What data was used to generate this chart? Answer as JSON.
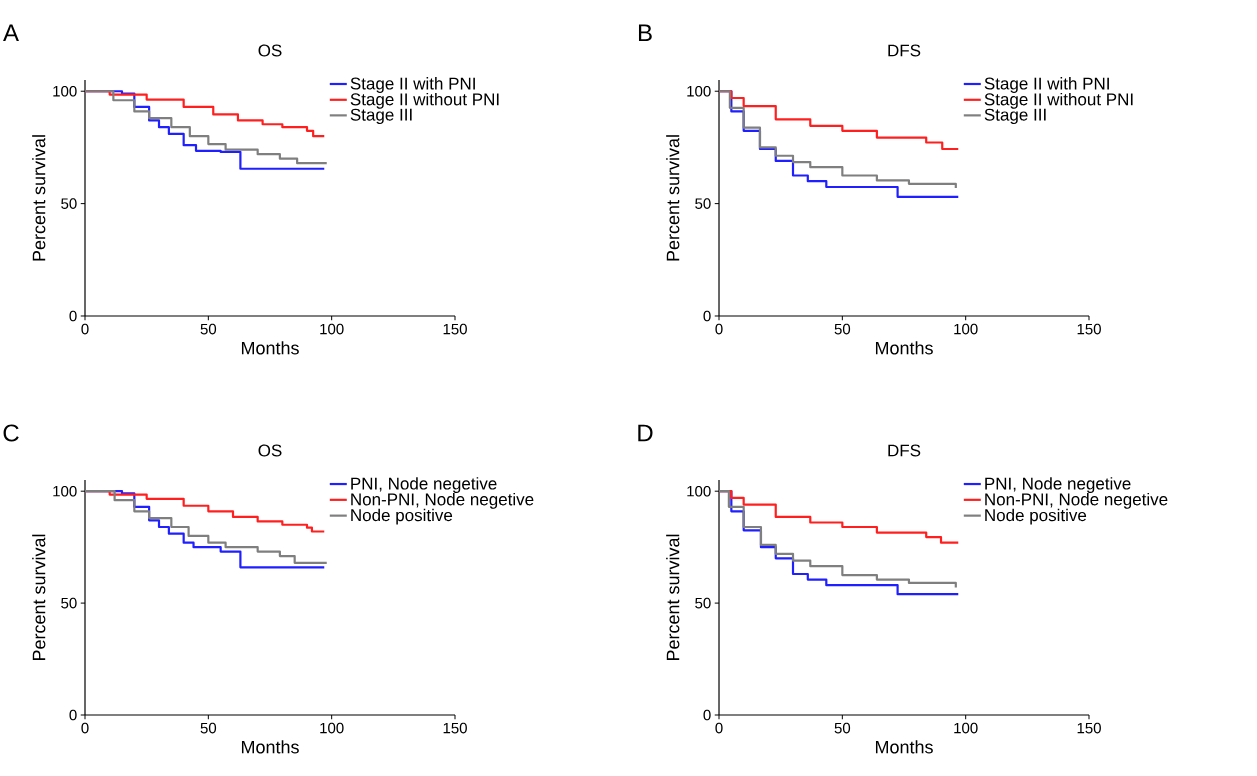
{
  "chart_data": [
    {
      "type": "step",
      "title": "OS",
      "xlabel": "Months",
      "ylabel": "Percent survival",
      "annotations": [
        "A"
      ],
      "xlim": [
        0,
        150
      ],
      "xticks": [
        0,
        50,
        100,
        150
      ],
      "ylim": [
        0,
        105
      ],
      "yticks": [
        0,
        50,
        100
      ],
      "legend": "top right",
      "series": [
        {
          "name": "Stage II with PNI",
          "color": "#1f1fff",
          "x": [
            0,
            15,
            20,
            26,
            30,
            34,
            40,
            45,
            55,
            63,
            97
          ],
          "values": [
            100,
            99,
            93,
            87,
            84,
            81,
            76,
            73.5,
            73,
            65.5,
            65.5
          ]
        },
        {
          "name": "Stage II without PNI",
          "color": "#ff1f1f",
          "x": [
            0,
            10,
            25,
            40,
            52,
            62,
            72,
            80,
            90,
            92.5,
            97
          ],
          "values": [
            100,
            98.5,
            96.3,
            93,
            89.7,
            87,
            85.3,
            84,
            82.4,
            80,
            80
          ]
        },
        {
          "name": "Stage III",
          "color": "#7f7f7f",
          "x": [
            0,
            11.5,
            20,
            26,
            35,
            42.5,
            50,
            57,
            70,
            79,
            86,
            98
          ],
          "values": [
            100,
            96,
            91,
            88,
            84,
            80,
            76.5,
            74,
            72,
            70,
            68,
            68
          ]
        }
      ]
    },
    {
      "type": "step",
      "title": "DFS",
      "xlabel": "Months",
      "ylabel": "Percent survival",
      "annotations": [
        "B"
      ],
      "xlim": [
        0,
        150
      ],
      "xticks": [
        0,
        50,
        100,
        150
      ],
      "ylim": [
        0,
        105
      ],
      "yticks": [
        0,
        50,
        100
      ],
      "legend": "top right",
      "series": [
        {
          "name": "Stage II with PNI",
          "color": "#1f1fff",
          "x": [
            0,
            5,
            10,
            16.6,
            23,
            30,
            36,
            43.5,
            72.4,
            97
          ],
          "values": [
            100,
            91,
            82.4,
            74.3,
            69,
            62.5,
            60,
            57.4,
            53,
            53
          ]
        },
        {
          "name": "Stage II without PNI",
          "color": "#ff1f1f",
          "x": [
            0,
            5,
            10,
            23,
            37,
            50,
            64,
            84,
            90.5,
            97
          ],
          "values": [
            100,
            97,
            93.4,
            87.5,
            84.6,
            82.4,
            79.4,
            77.2,
            74.3,
            74.3
          ]
        },
        {
          "name": "Stage III",
          "color": "#7f7f7f",
          "x": [
            0,
            4.4,
            10,
            16.6,
            23,
            30,
            37,
            50,
            64,
            77,
            96
          ],
          "values": [
            100,
            92.6,
            83.8,
            75,
            71.3,
            68.5,
            66.2,
            62.5,
            60.3,
            58.8,
            57
          ]
        }
      ]
    },
    {
      "type": "step",
      "title": "OS",
      "xlabel": "Months",
      "ylabel": "Percent survival",
      "annotations": [
        "C"
      ],
      "xlim": [
        0,
        150
      ],
      "xticks": [
        0,
        50,
        100,
        150
      ],
      "ylim": [
        0,
        105
      ],
      "yticks": [
        0,
        50,
        100
      ],
      "legend": "top right",
      "series": [
        {
          "name": "PNI, Node negetive",
          "color": "#1f1fff",
          "x": [
            0,
            15,
            20,
            26,
            30,
            34,
            40,
            44,
            55,
            63,
            97
          ],
          "values": [
            100,
            99,
            93,
            87,
            84,
            81,
            77,
            75,
            73,
            66,
            66
          ]
        },
        {
          "name": "Non-PNI, Node negetive",
          "color": "#ff1f1f",
          "x": [
            0,
            10,
            25,
            40,
            50,
            60,
            70,
            80,
            90,
            92,
            97
          ],
          "values": [
            100,
            98.5,
            96.6,
            93.5,
            91,
            88.5,
            86.5,
            85,
            83.7,
            82,
            82
          ]
        },
        {
          "name": "Node positive",
          "color": "#7f7f7f",
          "x": [
            0,
            12,
            20,
            26,
            35,
            42,
            50,
            57,
            70,
            79,
            85,
            98
          ],
          "values": [
            100,
            96,
            91,
            88,
            84,
            80,
            77,
            75,
            73,
            71,
            68,
            68
          ]
        }
      ]
    },
    {
      "type": "step",
      "title": "DFS",
      "xlabel": "Months",
      "ylabel": "Percent survival",
      "annotations": [
        "D"
      ],
      "xlim": [
        0,
        150
      ],
      "xticks": [
        0,
        50,
        100,
        150
      ],
      "ylim": [
        0,
        105
      ],
      "yticks": [
        0,
        50,
        100
      ],
      "legend": "top right",
      "series": [
        {
          "name": "PNI, Node negetive",
          "color": "#1f1fff",
          "x": [
            0,
            5,
            10,
            17,
            23,
            30,
            36,
            43.5,
            72.4,
            97
          ],
          "values": [
            100,
            91,
            82.5,
            75,
            70,
            63,
            60.5,
            58,
            54,
            54
          ]
        },
        {
          "name": "Non-PNI, Node negetive",
          "color": "#ff1f1f",
          "x": [
            0,
            5,
            10,
            23,
            37,
            50,
            64,
            84,
            90,
            97
          ],
          "values": [
            100,
            97,
            94,
            88.5,
            86,
            84,
            81.5,
            79.5,
            77,
            77
          ]
        },
        {
          "name": "Node positive",
          "color": "#7f7f7f",
          "x": [
            0,
            4,
            10,
            17,
            23,
            30,
            37,
            50,
            64,
            77,
            96
          ],
          "values": [
            100,
            93,
            84,
            76,
            72,
            69,
            66.5,
            62.5,
            60.5,
            59,
            57
          ]
        }
      ]
    }
  ]
}
